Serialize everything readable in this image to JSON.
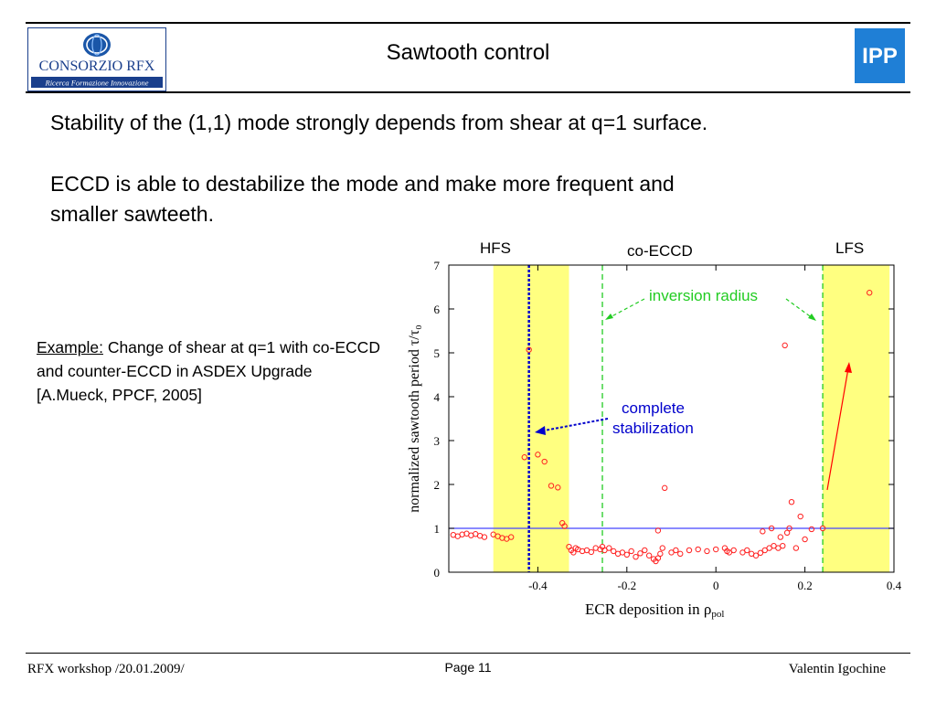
{
  "header": {
    "title": "Sawtooth control",
    "logo_left": {
      "line1": "CONSORZIO RFX",
      "line2": "Ricerca Formazione Innovazione"
    },
    "logo_right": "IPP"
  },
  "body": {
    "para1": "Stability of the (1,1) mode strongly depends from shear at q=1 surface.",
    "para2_line1": "ECCD is able to destabilize the mode and make more frequent and",
    "para2_line2": "smaller sawteeth.",
    "example_label": "Example:",
    "example_text": " Change of shear at q=1 with co-ECCD and counter-ECCD in ASDEX Upgrade [A.Mueck, PPCF, 2005]"
  },
  "footer": {
    "left": "RFX workshop /20.01.2009/",
    "center": "Page 11",
    "right": "Valentin Igochine"
  },
  "chart_data": {
    "type": "scatter",
    "xlabel": "ECR deposition in ρ",
    "xlabel_sub": "pol",
    "ylabel": "normalized sawtooth period τ/τ₀",
    "xlim": [
      -0.6,
      0.4
    ],
    "ylim": [
      0,
      7
    ],
    "x_ticks": [
      -0.4,
      -0.2,
      0,
      0.2,
      0.4
    ],
    "x_tick_labels": [
      "-0.4",
      "-0.2",
      "0",
      "0.2",
      "0.4"
    ],
    "y_ticks": [
      0,
      1,
      2,
      3,
      4,
      5,
      6,
      7
    ],
    "y_tick_labels": [
      "0",
      "1",
      "2",
      "3",
      "4",
      "5",
      "6",
      "7"
    ],
    "grid": false,
    "colors": {
      "points": "#ff2020",
      "bands": "#ffff80",
      "inversion": "#22cc22",
      "stabilization": "#0000cc",
      "reference": "#4444ff",
      "arrow": "#ff0000"
    },
    "region_labels": {
      "hfs": "HFS",
      "co_eccd": "co-ECCD",
      "lfs": "LFS"
    },
    "annotations": {
      "inversion_radius": "inversion radius",
      "stabilization_line1": "complete",
      "stabilization_line2": "stabilization"
    },
    "bands": [
      {
        "x0": -0.5,
        "x1": -0.33
      },
      {
        "x0": 0.24,
        "x1": 0.39
      }
    ],
    "inversion_radius_x": [
      -0.255,
      0.24
    ],
    "stabilization_x": -0.42,
    "reference_y": 1,
    "points": [
      {
        "x": -0.59,
        "y": 0.85
      },
      {
        "x": -0.58,
        "y": 0.82
      },
      {
        "x": -0.57,
        "y": 0.86
      },
      {
        "x": -0.56,
        "y": 0.88
      },
      {
        "x": -0.55,
        "y": 0.84
      },
      {
        "x": -0.54,
        "y": 0.87
      },
      {
        "x": -0.53,
        "y": 0.83
      },
      {
        "x": -0.52,
        "y": 0.8
      },
      {
        "x": -0.5,
        "y": 0.86
      },
      {
        "x": -0.49,
        "y": 0.82
      },
      {
        "x": -0.48,
        "y": 0.78
      },
      {
        "x": -0.47,
        "y": 0.76
      },
      {
        "x": -0.46,
        "y": 0.8
      },
      {
        "x": -0.43,
        "y": 2.62
      },
      {
        "x": -0.42,
        "y": 5.07
      },
      {
        "x": -0.4,
        "y": 2.68
      },
      {
        "x": -0.385,
        "y": 2.52
      },
      {
        "x": -0.37,
        "y": 1.97
      },
      {
        "x": -0.355,
        "y": 1.93
      },
      {
        "x": -0.345,
        "y": 1.12
      },
      {
        "x": -0.34,
        "y": 1.05
      },
      {
        "x": -0.33,
        "y": 0.58
      },
      {
        "x": -0.325,
        "y": 0.5
      },
      {
        "x": -0.32,
        "y": 0.45
      },
      {
        "x": -0.315,
        "y": 0.55
      },
      {
        "x": -0.31,
        "y": 0.52
      },
      {
        "x": -0.3,
        "y": 0.48
      },
      {
        "x": -0.29,
        "y": 0.5
      },
      {
        "x": -0.28,
        "y": 0.46
      },
      {
        "x": -0.27,
        "y": 0.55
      },
      {
        "x": -0.26,
        "y": 0.52
      },
      {
        "x": -0.255,
        "y": 0.58
      },
      {
        "x": -0.25,
        "y": 0.5
      },
      {
        "x": -0.24,
        "y": 0.55
      },
      {
        "x": -0.23,
        "y": 0.48
      },
      {
        "x": -0.22,
        "y": 0.42
      },
      {
        "x": -0.21,
        "y": 0.45
      },
      {
        "x": -0.2,
        "y": 0.4
      },
      {
        "x": -0.19,
        "y": 0.48
      },
      {
        "x": -0.18,
        "y": 0.35
      },
      {
        "x": -0.17,
        "y": 0.43
      },
      {
        "x": -0.16,
        "y": 0.5
      },
      {
        "x": -0.15,
        "y": 0.38
      },
      {
        "x": -0.14,
        "y": 0.3
      },
      {
        "x": -0.135,
        "y": 0.25
      },
      {
        "x": -0.13,
        "y": 0.32
      },
      {
        "x": -0.125,
        "y": 0.42
      },
      {
        "x": -0.12,
        "y": 0.55
      },
      {
        "x": -0.13,
        "y": 0.95
      },
      {
        "x": -0.115,
        "y": 1.92
      },
      {
        "x": -0.1,
        "y": 0.45
      },
      {
        "x": -0.09,
        "y": 0.5
      },
      {
        "x": -0.08,
        "y": 0.42
      },
      {
        "x": -0.06,
        "y": 0.5
      },
      {
        "x": -0.04,
        "y": 0.52
      },
      {
        "x": -0.02,
        "y": 0.48
      },
      {
        "x": 0.0,
        "y": 0.52
      },
      {
        "x": 0.02,
        "y": 0.55
      },
      {
        "x": 0.025,
        "y": 0.48
      },
      {
        "x": 0.03,
        "y": 0.45
      },
      {
        "x": 0.04,
        "y": 0.5
      },
      {
        "x": 0.06,
        "y": 0.45
      },
      {
        "x": 0.07,
        "y": 0.5
      },
      {
        "x": 0.08,
        "y": 0.42
      },
      {
        "x": 0.09,
        "y": 0.38
      },
      {
        "x": 0.1,
        "y": 0.44
      },
      {
        "x": 0.11,
        "y": 0.5
      },
      {
        "x": 0.105,
        "y": 0.93
      },
      {
        "x": 0.12,
        "y": 0.55
      },
      {
        "x": 0.125,
        "y": 1.0
      },
      {
        "x": 0.13,
        "y": 0.6
      },
      {
        "x": 0.14,
        "y": 0.55
      },
      {
        "x": 0.145,
        "y": 0.8
      },
      {
        "x": 0.15,
        "y": 0.6
      },
      {
        "x": 0.155,
        "y": 5.17
      },
      {
        "x": 0.16,
        "y": 0.9
      },
      {
        "x": 0.165,
        "y": 1.0
      },
      {
        "x": 0.17,
        "y": 1.6
      },
      {
        "x": 0.18,
        "y": 0.55
      },
      {
        "x": 0.19,
        "y": 1.27
      },
      {
        "x": 0.2,
        "y": 0.75
      },
      {
        "x": 0.215,
        "y": 0.98
      },
      {
        "x": 0.24,
        "y": 1.0
      },
      {
        "x": 0.345,
        "y": 6.37
      }
    ]
  }
}
